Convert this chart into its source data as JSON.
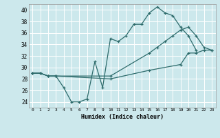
{
  "xlabel": "Humidex (Indice chaleur)",
  "bg_color": "#cce8ec",
  "line_color": "#2d6b6b",
  "grid_color": "#ffffff",
  "xlim": [
    -0.5,
    23.5
  ],
  "ylim": [
    23.0,
    41.0
  ],
  "yticks": [
    24,
    26,
    28,
    30,
    32,
    34,
    36,
    38,
    40
  ],
  "xticks": [
    0,
    1,
    2,
    3,
    4,
    5,
    6,
    7,
    8,
    9,
    10,
    11,
    12,
    13,
    14,
    15,
    16,
    17,
    18,
    19,
    20,
    21,
    22,
    23
  ],
  "series1_x": [
    0,
    1,
    2,
    3,
    4,
    5,
    6,
    7,
    8,
    9,
    10,
    11,
    12,
    13,
    14,
    15,
    16,
    17,
    18,
    19,
    20,
    21
  ],
  "series1_y": [
    29.0,
    29.0,
    28.5,
    28.5,
    26.5,
    24.0,
    24.0,
    24.5,
    31.0,
    26.5,
    35.0,
    34.5,
    35.5,
    37.5,
    37.5,
    39.5,
    40.5,
    39.5,
    39.0,
    37.0,
    35.5,
    33.0
  ],
  "series2_x": [
    0,
    1,
    2,
    3,
    10,
    15,
    19,
    20,
    21,
    22,
    23
  ],
  "series2_y": [
    29.0,
    29.0,
    28.5,
    28.5,
    28.0,
    29.5,
    30.5,
    32.5,
    32.5,
    33.0,
    33.0
  ],
  "series3_x": [
    0,
    1,
    2,
    3,
    10,
    15,
    16,
    17,
    18,
    19,
    20,
    21,
    22,
    23
  ],
  "series3_y": [
    29.0,
    29.0,
    28.5,
    28.5,
    28.5,
    32.5,
    33.5,
    34.5,
    35.5,
    36.5,
    37.0,
    35.5,
    33.5,
    33.0
  ]
}
